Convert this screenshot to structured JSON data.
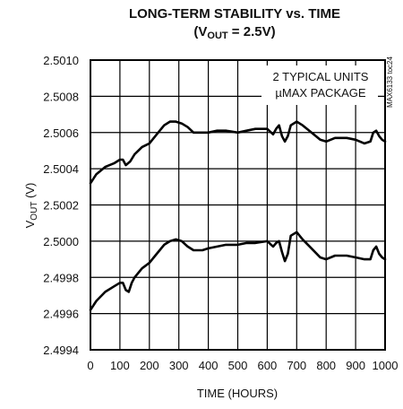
{
  "chart_data": {
    "type": "line",
    "title_line1": "LONG-TERM STABILITY vs. TIME",
    "title_line2_prefix": "(V",
    "title_line2_sub": "OUT",
    "title_line2_suffix": " = 2.5V)",
    "xlabel": "TIME (HOURS)",
    "ylabel_prefix": "V",
    "ylabel_sub": "OUT",
    "ylabel_suffix": " (V)",
    "xlim": [
      0,
      1000
    ],
    "ylim": [
      2.4994,
      2.501
    ],
    "x_ticks": [
      0,
      100,
      200,
      300,
      400,
      500,
      600,
      700,
      800,
      900,
      1000
    ],
    "y_ticks": [
      2.4994,
      2.4996,
      2.4998,
      2.5,
      2.5002,
      2.5004,
      2.5006,
      2.5008,
      2.501
    ],
    "y_tick_labels": [
      "2.4994",
      "2.4996",
      "2.4998",
      "2.5000",
      "2.5002",
      "2.5004",
      "2.5006",
      "2.5008",
      "2.5010"
    ],
    "grid": true,
    "annotation_line1": "2 TYPICAL UNITS",
    "annotation_line2": "µMAX PACKAGE",
    "side_label": "MAX6133 toc24",
    "series": [
      {
        "x": [
          0,
          20,
          50,
          80,
          100,
          110,
          120,
          135,
          150,
          175,
          200,
          225,
          250,
          270,
          290,
          310,
          330,
          350,
          380,
          400,
          430,
          460,
          500,
          530,
          560,
          600,
          620,
          630,
          640,
          650,
          660,
          670,
          680,
          700,
          720,
          750,
          780,
          800,
          830,
          870,
          900,
          930,
          950,
          960,
          970,
          980,
          990,
          1000
        ],
        "y": [
          2.50032,
          2.50037,
          2.50041,
          2.50043,
          2.50045,
          2.50045,
          2.50042,
          2.50044,
          2.50048,
          2.50052,
          2.50054,
          2.50059,
          2.50064,
          2.50066,
          2.50066,
          2.50065,
          2.50063,
          2.5006,
          2.5006,
          2.5006,
          2.50061,
          2.50061,
          2.5006,
          2.50061,
          2.50062,
          2.50062,
          2.50059,
          2.50062,
          2.50064,
          2.50058,
          2.50055,
          2.50058,
          2.50064,
          2.50066,
          2.50064,
          2.5006,
          2.50056,
          2.50055,
          2.50057,
          2.50057,
          2.50056,
          2.50054,
          2.50055,
          2.5006,
          2.50061,
          2.50058,
          2.50056,
          2.50055
        ]
      },
      {
        "x": [
          0,
          20,
          50,
          80,
          100,
          110,
          120,
          130,
          140,
          150,
          175,
          200,
          225,
          250,
          270,
          290,
          310,
          330,
          350,
          380,
          400,
          430,
          460,
          500,
          530,
          560,
          600,
          620,
          630,
          640,
          650,
          660,
          670,
          680,
          700,
          720,
          750,
          780,
          800,
          830,
          870,
          900,
          930,
          950,
          960,
          970,
          980,
          990,
          1000
        ],
        "y": [
          2.49962,
          2.49967,
          2.49972,
          2.49975,
          2.49977,
          2.49977,
          2.49973,
          2.49972,
          2.49977,
          2.4998,
          2.49985,
          2.49988,
          2.49993,
          2.49998,
          2.5,
          2.50001,
          2.5,
          2.49997,
          2.49995,
          2.49995,
          2.49996,
          2.49997,
          2.49998,
          2.49998,
          2.49999,
          2.49999,
          2.5,
          2.49997,
          2.49999,
          2.5,
          2.49994,
          2.49989,
          2.49993,
          2.50003,
          2.50005,
          2.50001,
          2.49996,
          2.49991,
          2.4999,
          2.49992,
          2.49992,
          2.49991,
          2.4999,
          2.4999,
          2.49995,
          2.49997,
          2.49993,
          2.49991,
          2.4999
        ]
      }
    ]
  }
}
